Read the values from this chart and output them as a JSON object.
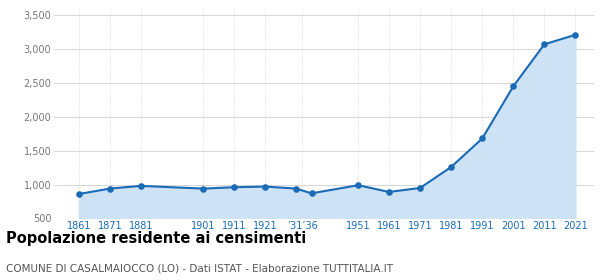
{
  "years": [
    1861,
    1871,
    1881,
    1901,
    1911,
    1921,
    1931,
    1936,
    1951,
    1961,
    1971,
    1981,
    1991,
    2001,
    2011,
    2021
  ],
  "population": [
    860,
    940,
    980,
    940,
    960,
    970,
    940,
    870,
    990,
    890,
    950,
    1260,
    1680,
    2450,
    3070,
    3210
  ],
  "x_ticks": [
    1861,
    1871,
    1881,
    1901,
    1911,
    1921,
    1933,
    1951,
    1961,
    1971,
    1981,
    1991,
    2001,
    2011,
    2021
  ],
  "x_tick_display": [
    "1861",
    "1871",
    "1881",
    "1901",
    "1911",
    "1921",
    "’31’36",
    "1951",
    "1961",
    "1971",
    "1981",
    "1991",
    "2001",
    "2011",
    "2021"
  ],
  "ylim": [
    500,
    3600
  ],
  "yticks": [
    500,
    1000,
    1500,
    2000,
    2500,
    3000,
    3500
  ],
  "ytick_labels": [
    "500",
    "1,000",
    "1,500",
    "2,000",
    "2,500",
    "3,000",
    "3,500"
  ],
  "line_color": "#1a6ab5",
  "fill_color": "#cde3f5",
  "marker_color": "#1a6ab5",
  "grid_color": "#d0d0d0",
  "background_color": "#ffffff",
  "title": "Popolazione residente ai censimenti",
  "subtitle": "COMUNE DI CASALMAIOCCO (LO) - Dati ISTAT - Elaborazione TUTTITALIA.IT",
  "title_fontsize": 10.5,
  "subtitle_fontsize": 7.5,
  "xlim": [
    1853,
    2027
  ]
}
